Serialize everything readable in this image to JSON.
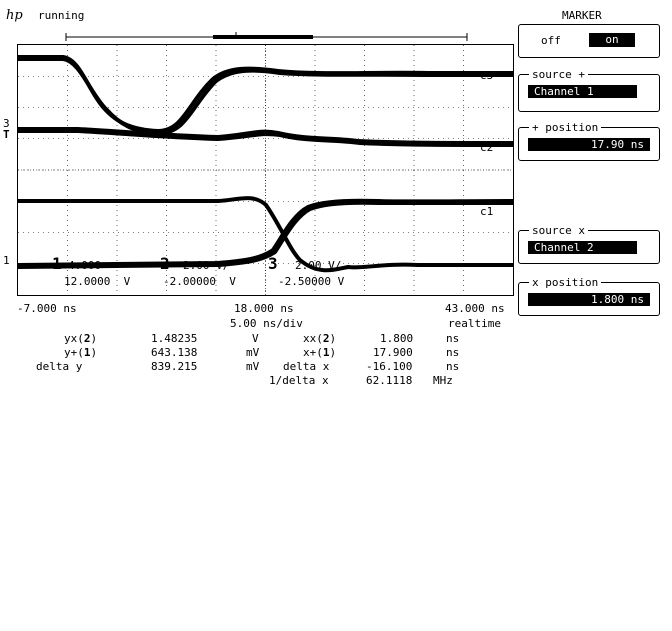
{
  "header": {
    "logo": "hp",
    "status": "running"
  },
  "marker_menu": {
    "title": "MARKER",
    "toggle_off": "off",
    "toggle_on": "on",
    "source_plus_label": "source +",
    "source_plus_value": "Channel 1",
    "plus_position_label": "+ position",
    "plus_position_value": "17.90 ns",
    "source_x_label": "source x",
    "source_x_value": "Channel 2",
    "x_position_label": "x position",
    "x_position_value": "1.800 ns"
  },
  "waveform": {
    "markers": {
      "left_3": "3",
      "left_t": "T",
      "left_1": "1"
    },
    "channel_labels": {
      "c3": "c3",
      "c2": "c2",
      "c1": "c1"
    },
    "overlay": {
      "ch1_scale": "1",
      "ch1_val": "4.000",
      "ch2_scale": "2",
      "ch2_val": "2.00 V/",
      "ch3_scale": "3",
      "ch3_val": "2.00 V/",
      "offset1": "12.0000  V",
      "offset2": "-2.00000  V",
      "offset3": "-2.50000 V"
    }
  },
  "timebase": {
    "left": "-7.000 ns",
    "center": "18.000 ns",
    "right": "43.000 ns",
    "per_div": "5.00 ns/div",
    "mode": "realtime"
  },
  "measurements": {
    "y_x_label": "yx(",
    "y_x_ch": "2",
    "y_x_value": "1.48235",
    "y_x_unit": "V",
    "y_plus_label": "y+(",
    "y_plus_ch": "1",
    "y_plus_value": "643.138",
    "y_plus_unit": "mV",
    "delta_y_label": "delta y",
    "delta_y_value": "839.215",
    "delta_y_unit": "mV",
    "x_x_label": "xx(",
    "x_x_ch": "2",
    "x_x_value": "1.800",
    "x_x_unit": "ns",
    "x_plus_label": "x+(",
    "x_plus_ch": "1",
    "x_plus_value": "17.900",
    "x_plus_unit": "ns",
    "delta_x_label": "delta x",
    "delta_x_value": "-16.100",
    "delta_x_unit": "ns",
    "inv_delta_x_label": "1/delta x",
    "inv_delta_x_value": "62.1118",
    "inv_delta_x_unit": "MHz"
  }
}
